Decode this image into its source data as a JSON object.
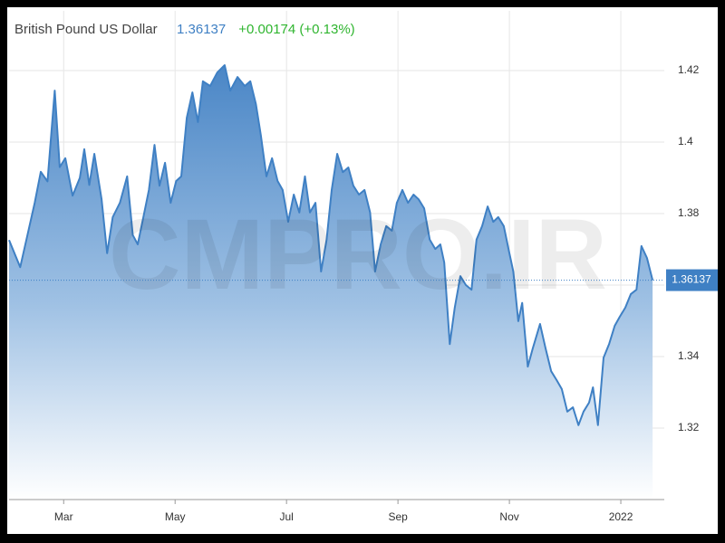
{
  "chart_data": {
    "type": "area",
    "title": "British Pound US Dollar",
    "price": 1.36137,
    "change": "+0.00174 (+0.13%)",
    "watermark": "CMPRO.IR",
    "color": "#3f80c4",
    "grid": true,
    "x": [
      1.02,
      1.22,
      1.35,
      1.48,
      1.59,
      1.71,
      1.84,
      1.93,
      2.03,
      2.16,
      2.29,
      2.37,
      2.46,
      2.55,
      2.68,
      2.78,
      2.88,
      3.01,
      3.14,
      3.24,
      3.33,
      3.43,
      3.53,
      3.63,
      3.72,
      3.82,
      3.92,
      4.02,
      4.11,
      4.21,
      4.31,
      4.41,
      4.5,
      4.63,
      4.76,
      4.89,
      4.99,
      5.12,
      5.25,
      5.35,
      5.45,
      5.54,
      5.64,
      5.74,
      5.84,
      5.93,
      6.03,
      6.13,
      6.23,
      6.33,
      6.42,
      6.52,
      6.62,
      6.72,
      6.81,
      6.91,
      7.01,
      7.11,
      7.2,
      7.3,
      7.4,
      7.5,
      7.59,
      7.69,
      7.79,
      7.89,
      7.98,
      8.08,
      8.18,
      8.28,
      8.37,
      8.47,
      8.57,
      8.67,
      8.76,
      8.83,
      8.93,
      9.02,
      9.12,
      9.22,
      9.32,
      9.41,
      9.51,
      9.61,
      9.71,
      9.8,
      9.9,
      10.0,
      10.07,
      10.16,
      10.23,
      10.33,
      10.42,
      10.55,
      10.65,
      10.75,
      10.85,
      10.94,
      11.04,
      11.14,
      11.24,
      11.33,
      11.43,
      11.5,
      11.59,
      11.69,
      11.79,
      11.89,
      11.98,
      12.08,
      12.18,
      12.28,
      12.37,
      12.47,
      12.57
    ],
    "series": [
      {
        "name": "British Pound US Dollar",
        "color": "#3f80c4",
        "values": [
          1.3726,
          1.365,
          1.374,
          1.383,
          1.3917,
          1.389,
          1.4144,
          1.393,
          1.3955,
          1.385,
          1.39,
          1.398,
          1.388,
          1.3967,
          1.384,
          1.3689,
          1.379,
          1.383,
          1.3904,
          1.374,
          1.3714,
          1.379,
          1.3866,
          1.3992,
          1.3878,
          1.3942,
          1.383,
          1.3891,
          1.3904,
          1.4068,
          1.4139,
          1.4056,
          1.417,
          1.4157,
          1.4195,
          1.4215,
          1.4144,
          1.4182,
          1.4157,
          1.417,
          1.4106,
          1.4018,
          1.3904,
          1.3955,
          1.3891,
          1.3866,
          1.3777,
          1.3853,
          1.3803,
          1.3904,
          1.3803,
          1.383,
          1.3638,
          1.3727,
          1.3866,
          1.3967,
          1.3916,
          1.3929,
          1.3878,
          1.3853,
          1.3866,
          1.3803,
          1.3638,
          1.3714,
          1.3765,
          1.3752,
          1.383,
          1.3866,
          1.383,
          1.3853,
          1.384,
          1.3815,
          1.3727,
          1.3701,
          1.3714,
          1.3663,
          1.3435,
          1.3537,
          1.3625,
          1.36,
          1.3587,
          1.3727,
          1.3765,
          1.382,
          1.3777,
          1.379,
          1.3765,
          1.3689,
          1.3638,
          1.3499,
          1.355,
          1.3372,
          1.3423,
          1.3491,
          1.3423,
          1.3359,
          1.3334,
          1.3309,
          1.3246,
          1.3258,
          1.3208,
          1.3246,
          1.3271,
          1.3314,
          1.3208,
          1.3397,
          1.3435,
          1.3486,
          1.3511,
          1.3537,
          1.3575,
          1.3587,
          1.3709,
          1.3676,
          1.36137
        ]
      }
    ],
    "xlim": [
      1.02,
      12.78
    ],
    "xticks": [
      {
        "value": 2,
        "label": "Mar"
      },
      {
        "value": 4,
        "label": "May"
      },
      {
        "value": 6,
        "label": "Jul"
      },
      {
        "value": 8,
        "label": "Sep"
      },
      {
        "value": 10,
        "label": "Nov"
      },
      {
        "value": 12,
        "label": "2022"
      }
    ],
    "ylim": [
      1.3,
      1.4367
    ],
    "yticks": [
      1.32,
      1.34,
      1.36,
      1.38,
      1.4,
      1.42
    ]
  }
}
